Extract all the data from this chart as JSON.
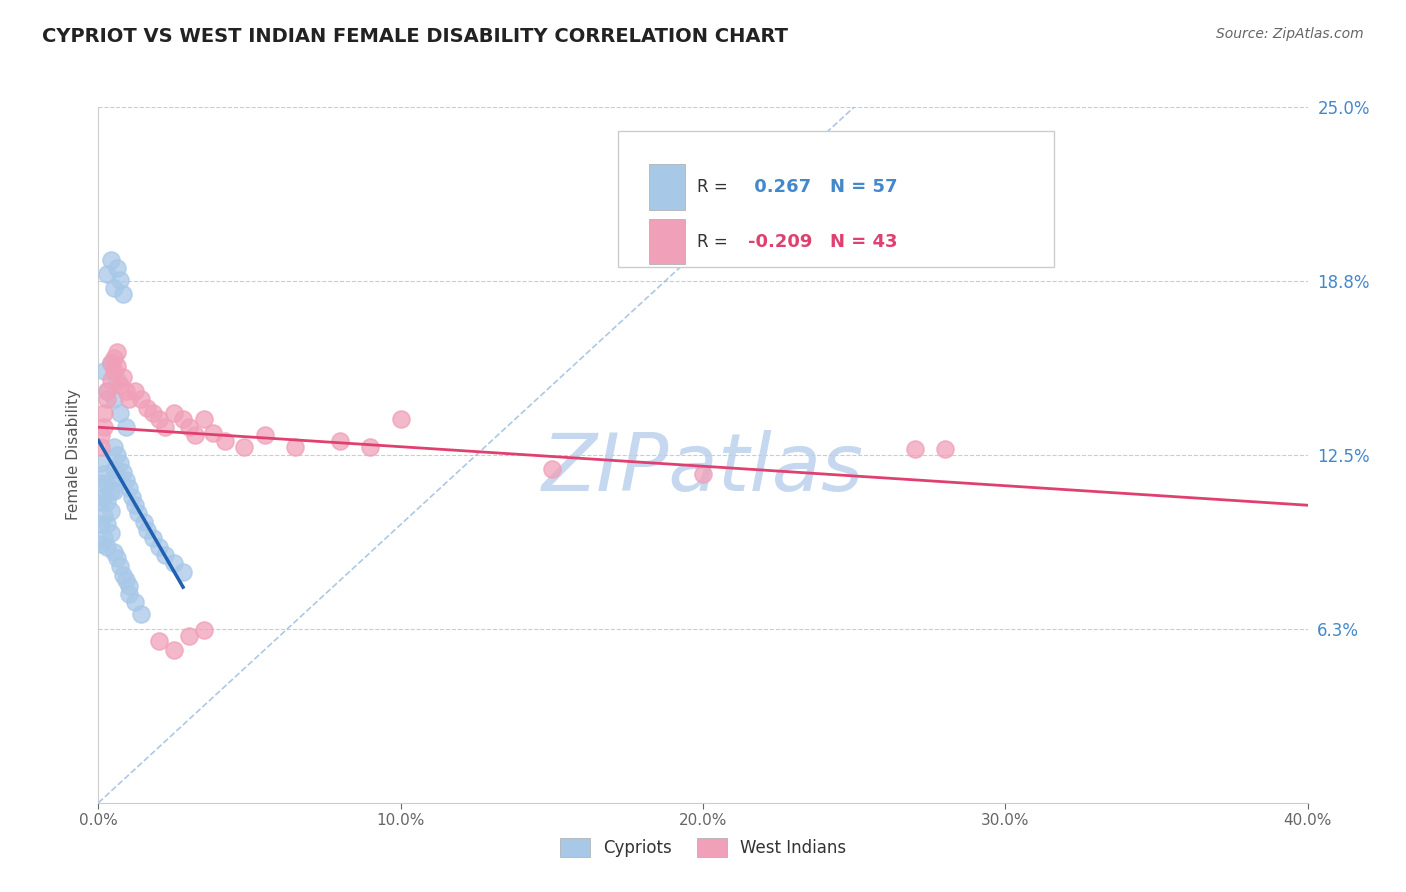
{
  "title": "CYPRIOT VS WEST INDIAN FEMALE DISABILITY CORRELATION CHART",
  "source_text": "Source: ZipAtlas.com",
  "ylabel": "Female Disability",
  "xlim": [
    0.0,
    0.4
  ],
  "ylim": [
    0.0,
    0.25
  ],
  "ytick_vals": [
    0.0,
    0.0625,
    0.125,
    0.1875,
    0.25
  ],
  "ytick_labels": [
    "",
    "6.3%",
    "12.5%",
    "18.8%",
    "25.0%"
  ],
  "xtick_vals": [
    0.0,
    0.1,
    0.2,
    0.3,
    0.4
  ],
  "xtick_labels": [
    "0.0%",
    "10.0%",
    "20.0%",
    "30.0%",
    "40.0%"
  ],
  "blue_color": "#a8c8e8",
  "pink_color": "#f0a0b8",
  "blue_line_color": "#2060b0",
  "pink_line_color": "#e04070",
  "blue_R": 0.267,
  "blue_N": 57,
  "pink_R": -0.209,
  "pink_N": 43,
  "blue_x": [
    0.001,
    0.001,
    0.001,
    0.001,
    0.001,
    0.002,
    0.002,
    0.002,
    0.002,
    0.003,
    0.003,
    0.003,
    0.003,
    0.004,
    0.004,
    0.004,
    0.005,
    0.005,
    0.005,
    0.005,
    0.006,
    0.006,
    0.006,
    0.007,
    0.007,
    0.008,
    0.008,
    0.009,
    0.009,
    0.01,
    0.01,
    0.01,
    0.011,
    0.012,
    0.012,
    0.013,
    0.014,
    0.015,
    0.016,
    0.018,
    0.02,
    0.022,
    0.025,
    0.028,
    0.003,
    0.004,
    0.005,
    0.006,
    0.007,
    0.008,
    0.002,
    0.003,
    0.004,
    0.005,
    0.006,
    0.007,
    0.009
  ],
  "blue_y": [
    0.122,
    0.115,
    0.108,
    0.1,
    0.093,
    0.118,
    0.11,
    0.103,
    0.095,
    0.115,
    0.108,
    0.1,
    0.092,
    0.112,
    0.105,
    0.097,
    0.128,
    0.12,
    0.112,
    0.09,
    0.125,
    0.117,
    0.088,
    0.122,
    0.085,
    0.119,
    0.082,
    0.116,
    0.08,
    0.113,
    0.078,
    0.075,
    0.11,
    0.107,
    0.072,
    0.104,
    0.068,
    0.101,
    0.098,
    0.095,
    0.092,
    0.089,
    0.086,
    0.083,
    0.19,
    0.195,
    0.185,
    0.192,
    0.188,
    0.183,
    0.155,
    0.148,
    0.158,
    0.145,
    0.152,
    0.14,
    0.135
  ],
  "pink_x": [
    0.001,
    0.001,
    0.002,
    0.002,
    0.003,
    0.003,
    0.004,
    0.004,
    0.005,
    0.005,
    0.006,
    0.006,
    0.007,
    0.008,
    0.009,
    0.01,
    0.012,
    0.014,
    0.016,
    0.018,
    0.02,
    0.022,
    0.025,
    0.028,
    0.03,
    0.032,
    0.035,
    0.038,
    0.042,
    0.048,
    0.055,
    0.065,
    0.08,
    0.09,
    0.1,
    0.15,
    0.2,
    0.27,
    0.28,
    0.02,
    0.025,
    0.03,
    0.035
  ],
  "pink_y": [
    0.128,
    0.132,
    0.135,
    0.14,
    0.148,
    0.145,
    0.152,
    0.158,
    0.155,
    0.16,
    0.157,
    0.162,
    0.15,
    0.153,
    0.148,
    0.145,
    0.148,
    0.145,
    0.142,
    0.14,
    0.138,
    0.135,
    0.14,
    0.138,
    0.135,
    0.132,
    0.138,
    0.133,
    0.13,
    0.128,
    0.132,
    0.128,
    0.13,
    0.128,
    0.138,
    0.12,
    0.118,
    0.127,
    0.127,
    0.058,
    0.055,
    0.06,
    0.062
  ],
  "watermark_text": "ZIPatlas",
  "watermark_color": "#c5d8ef",
  "background_color": "#ffffff",
  "grid_color": "#cccccc",
  "legend_R_color": "#4488cc",
  "legend_N_color": "#4488cc",
  "legend_R2_color": "#e04070",
  "legend_N2_color": "#e04070"
}
